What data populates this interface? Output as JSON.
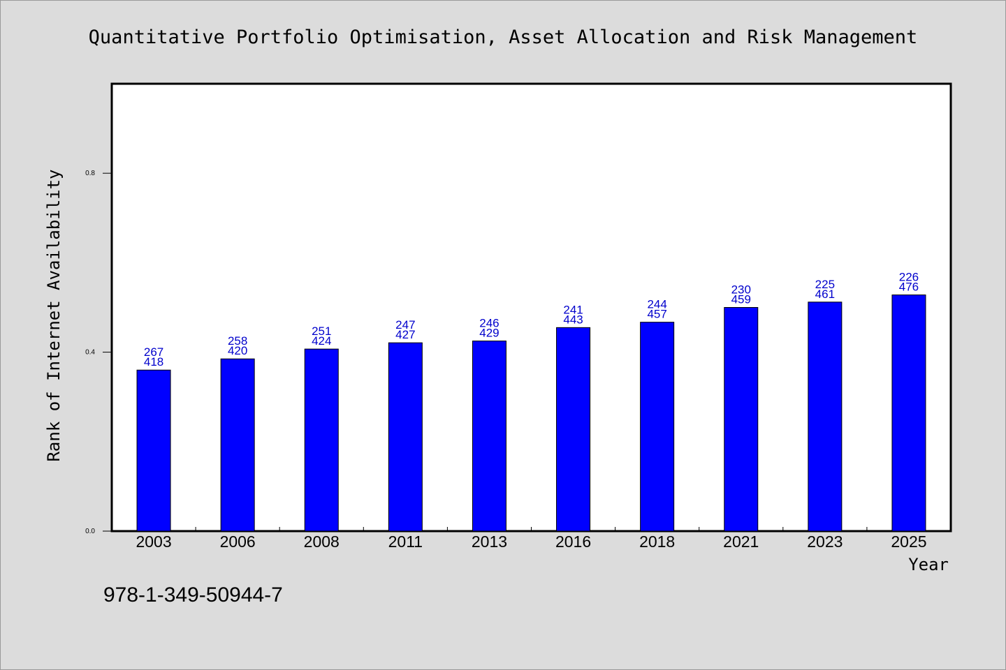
{
  "chart_data": {
    "type": "bar",
    "title": "Quantitative Portfolio Optimisation, Asset Allocation and Risk Management",
    "xlabel": "Year",
    "ylabel": "Rank of Internet Availability",
    "categories": [
      "2003",
      "2006",
      "2008",
      "2011",
      "2013",
      "2016",
      "2018",
      "2021",
      "2023",
      "2025"
    ],
    "values": [
      0.36,
      0.385,
      0.407,
      0.421,
      0.425,
      0.455,
      0.467,
      0.5,
      0.512,
      0.528
    ],
    "labels_top": [
      "267",
      "258",
      "251",
      "247",
      "246",
      "241",
      "244",
      "230",
      "225",
      "226"
    ],
    "labels_bottom": [
      "418",
      "420",
      "424",
      "427",
      "429",
      "443",
      "457",
      "459",
      "461",
      "476"
    ],
    "ylim": [
      0,
      1.0
    ],
    "yticks": [
      0.0,
      0.4,
      0.8
    ],
    "ytick_labels": [
      "0.0",
      "0.4",
      "0.8"
    ],
    "bar_color": "#0000ff",
    "label_color": "#0000cc",
    "grid": false,
    "legend": "none"
  },
  "footer": {
    "isbn": "978-1-349-50944-7"
  }
}
